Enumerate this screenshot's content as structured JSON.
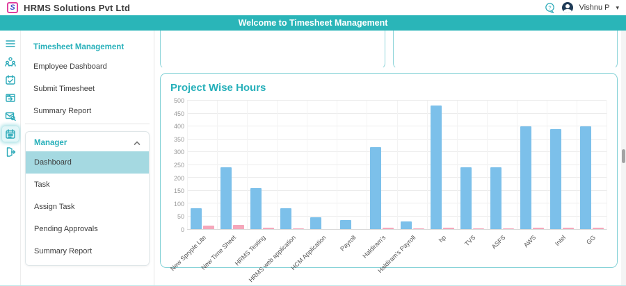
{
  "header": {
    "app_title": "HRMS Solutions Pvt Ltd",
    "user_name": "Vishnu P",
    "logo_icon": "hrms-logo-icon",
    "help_icon": "help-chat-icon",
    "avatar_icon": "user-avatar"
  },
  "banner": {
    "text": "Welcome to Timesheet Management"
  },
  "colors": {
    "accent_teal": "#2ab5b8",
    "teal_text": "#27b0ba",
    "active_item_bg": "#a5d9e1",
    "bar_blue": "#7cc0ea",
    "bar_pink": "#f5a7ba",
    "logo_magenta": "#e0409f",
    "logo_blue": "#4053c8",
    "avatar_navy": "#1f3b57"
  },
  "sidebar": {
    "rail_icons": [
      "menu-icon",
      "team-gear-icon",
      "calendar-check-icon",
      "window-arrow-icon",
      "mail-search-icon",
      "calendar-grid-icon",
      "logout-icon"
    ],
    "active_rail_icon": "calendar-grid-icon",
    "sections": [
      {
        "title": "Timesheet Management",
        "items": [
          "Employee Dashboard",
          "Submit Timesheet",
          "Summary Report"
        ]
      },
      {
        "title": "Manager",
        "collapsible": true,
        "active_item": "Dashboard",
        "items": [
          "Dashboard",
          "Task",
          "Assign Task",
          "Pending Approvals",
          "Summary Report"
        ]
      }
    ]
  },
  "main": {
    "chart_title": "Project Wise Hours"
  },
  "chart_data": {
    "type": "bar",
    "title": "Project Wise Hours",
    "categories": [
      "New Spryple Lite",
      "New Time Sheet",
      "HRMS Testing",
      "HRMS web application",
      "HCM Application",
      "Payroll",
      "Haldiram's",
      "Haldiram's Payroll",
      "hp",
      "TVS",
      "ASFS",
      "AWS",
      "Intel",
      "GG"
    ],
    "series": [
      {
        "color": "#7cc0ea",
        "values": [
          80,
          240,
          160,
          80,
          45,
          35,
          320,
          30,
          480,
          240,
          240,
          400,
          390,
          400
        ]
      },
      {
        "color": "#f5a7ba",
        "values": [
          13,
          17,
          6,
          2,
          0,
          0,
          5,
          3,
          5,
          3,
          3,
          5,
          5,
          5
        ]
      }
    ],
    "ylim": [
      0,
      500
    ],
    "ytick_step": 50,
    "grid": true,
    "legend": "none"
  }
}
